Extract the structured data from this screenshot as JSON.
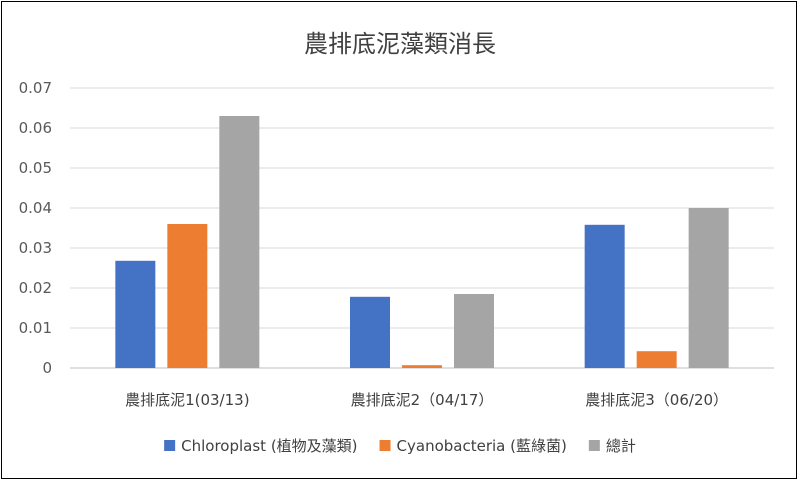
{
  "chart_data": {
    "type": "bar",
    "title": "農排底泥藻類消長",
    "categories": [
      "農排底泥1(03/13)",
      "農排底泥2（04/17）",
      "農排底泥3（06/20）"
    ],
    "series": [
      {
        "name": "Chloroplast (植物及藻類)",
        "color": "#4472C4",
        "values": [
          0.0268,
          0.0178,
          0.0358
        ]
      },
      {
        "name": "Cyanobacteria (藍綠菌)",
        "color": "#ED7D31",
        "values": [
          0.036,
          0.0007,
          0.0042
        ]
      },
      {
        "name": "總計",
        "color": "#A5A5A5",
        "values": [
          0.063,
          0.0185,
          0.04
        ]
      }
    ],
    "ylim": [
      0,
      0.07
    ],
    "yticks": [
      "0",
      "0.01",
      "0.02",
      "0.03",
      "0.04",
      "0.05",
      "0.06",
      "0.07"
    ],
    "grid": true,
    "legend_position": "bottom"
  }
}
